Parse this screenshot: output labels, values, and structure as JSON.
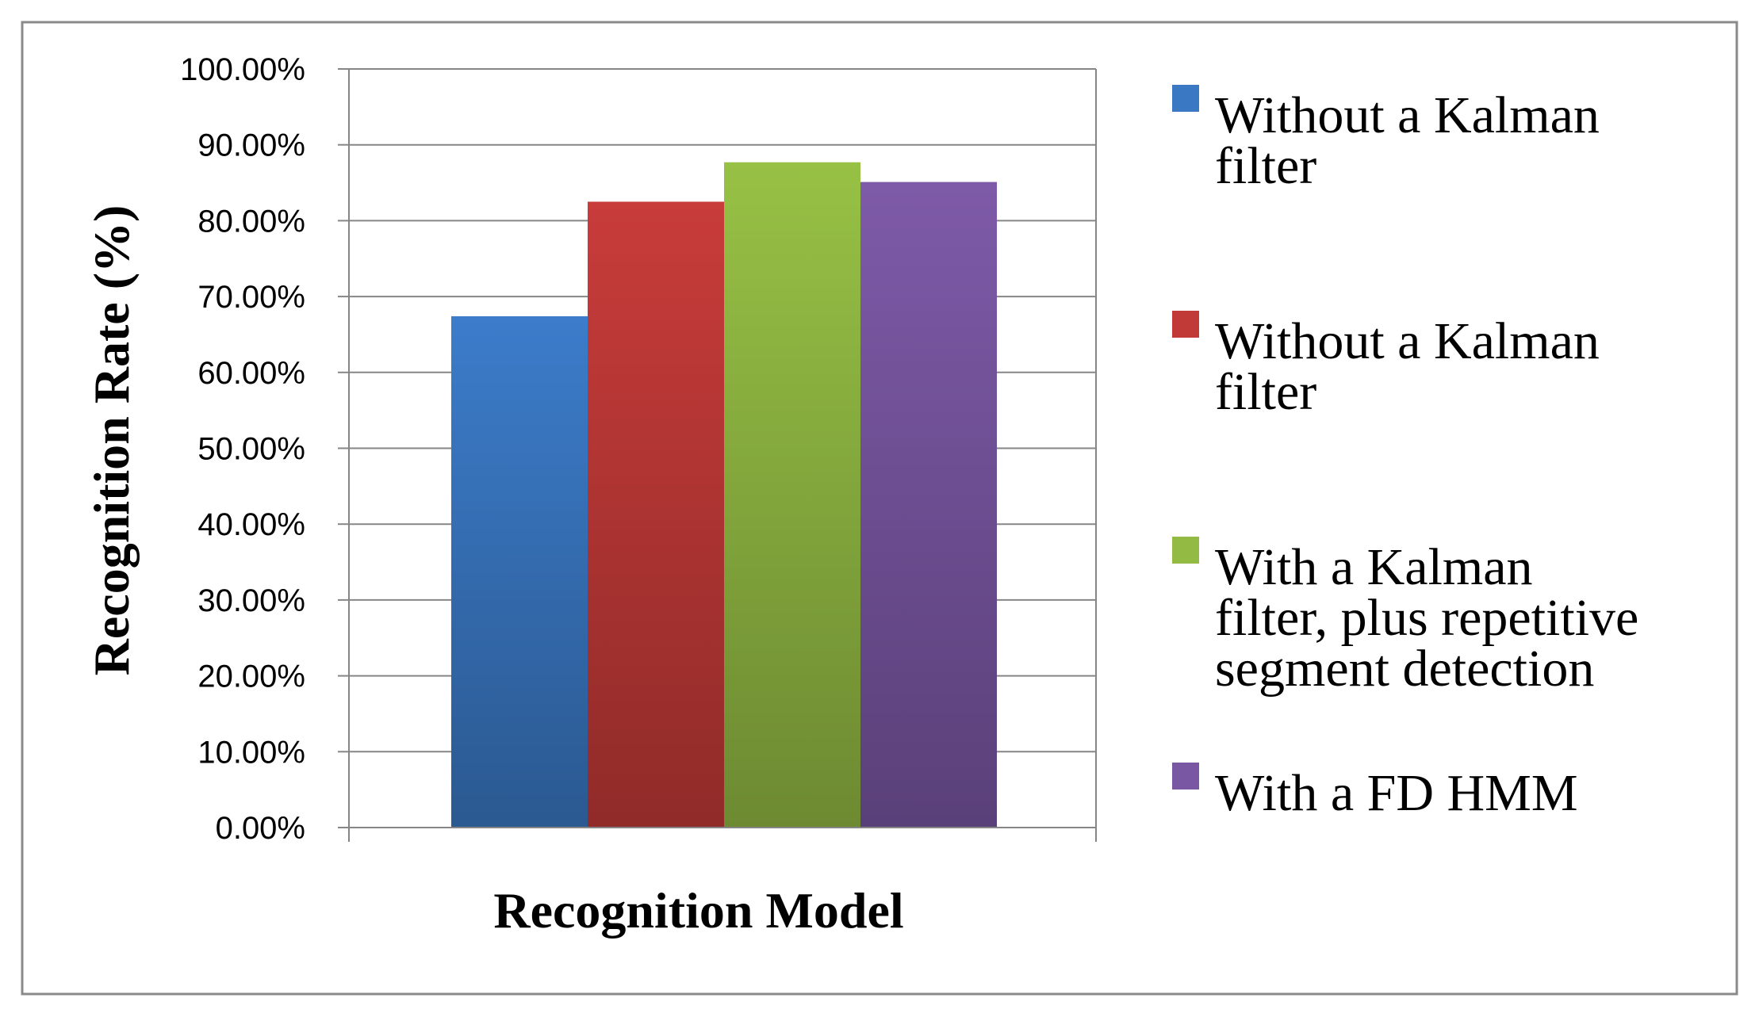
{
  "chart_data": {
    "type": "bar",
    "title": "",
    "xlabel": "Recognition Model",
    "ylabel": "Recognition Rate (%)",
    "ylim": [
      0,
      100
    ],
    "y_ticks": [
      "0.00%",
      "10.00%",
      "20.00%",
      "30.00%",
      "40.00%",
      "50.00%",
      "60.00%",
      "70.00%",
      "80.00%",
      "90.00%",
      "100.00%"
    ],
    "grid": true,
    "legend_position": "right",
    "categories": [
      ""
    ],
    "series": [
      {
        "name": "Without a Kalman filter",
        "legend_lines": [
          "Without a Kalman",
          "filter"
        ],
        "values": [
          67.4
        ],
        "color": "#3a78c4"
      },
      {
        "name": "Without a Kalman filter",
        "legend_lines": [
          "Without a Kalman",
          "filter"
        ],
        "values": [
          82.5
        ],
        "color": "#c23a38"
      },
      {
        "name": "With a Kalman filter, plus repetitive segment detection",
        "legend_lines": [
          "With a Kalman",
          "filter, plus repetitive",
          "segment detection"
        ],
        "values": [
          87.7
        ],
        "color": "#93bb43"
      },
      {
        "name": "With a FD HMM",
        "legend_lines": [
          "With a FD HMM"
        ],
        "values": [
          85.1
        ],
        "color": "#7a57a3"
      }
    ]
  }
}
